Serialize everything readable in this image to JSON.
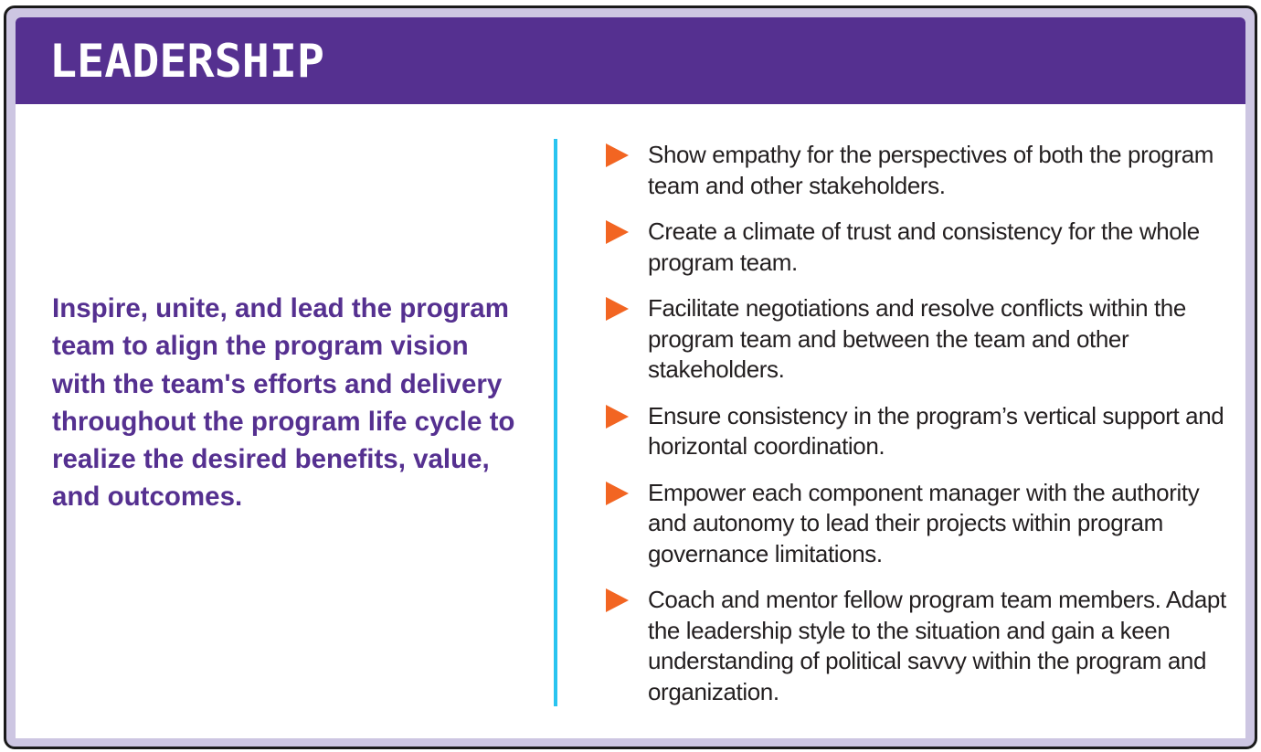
{
  "header": {
    "title": "LEADERSHIP"
  },
  "lead_text": "Inspire, unite, and lead the program team to align the program vision with the team's efforts and delivery throughout the program life cycle to realize the desired benefits, value, and outcomes.",
  "colors": {
    "header": "#553090",
    "frame": "#cdc6e2",
    "divider": "#29c4f0",
    "bullet": "#f26522",
    "lead_text": "#553090"
  },
  "bullet_icon": "triangle-right-icon",
  "items": [
    {
      "text": "Show empathy for the perspectives of both the program team and other stakeholders."
    },
    {
      "text": "Create a climate of trust and consistency for the whole program team."
    },
    {
      "text": "Facilitate negotiations and resolve conflicts within the program team and between the team and other stakeholders."
    },
    {
      "text": "Ensure consistency in the program’s vertical support and horizontal coordination."
    },
    {
      "text": "Empower each component manager with the authority and autonomy to lead their projects within program governance limitations."
    },
    {
      "text": "Coach and mentor fellow program team members. Adapt the leadership style to the situation and gain a keen understanding of political savvy within the program and organization."
    }
  ]
}
